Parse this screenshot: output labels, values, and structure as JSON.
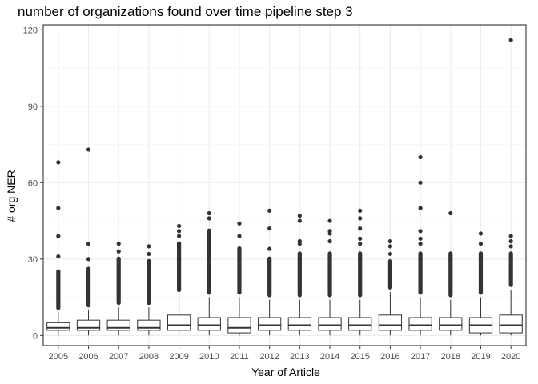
{
  "chart_data": {
    "type": "boxplot",
    "title": "number of organizations found over time pipeline step 3",
    "xlabel": "Year of Article",
    "ylabel": "# org NER",
    "ylim": [
      -4,
      122
    ],
    "yticks": [
      0,
      30,
      60,
      90,
      120
    ],
    "grid": true,
    "categories": [
      "2005",
      "2006",
      "2007",
      "2008",
      "2009",
      "2010",
      "2011",
      "2012",
      "2013",
      "2014",
      "2015",
      "2016",
      "2017",
      "2018",
      "2019",
      "2020"
    ],
    "boxes": [
      {
        "year": "2005",
        "min": 0,
        "q1": 2,
        "median": 3,
        "q3": 5,
        "upper_whisker": 9,
        "outliers_dense": [
          10,
          26
        ],
        "outliers": [
          31,
          39,
          50,
          68
        ]
      },
      {
        "year": "2006",
        "min": 0,
        "q1": 2,
        "median": 3,
        "q3": 6,
        "upper_whisker": 10,
        "outliers_dense": [
          11,
          27
        ],
        "outliers": [
          30,
          36,
          73
        ]
      },
      {
        "year": "2007",
        "min": 0,
        "q1": 2,
        "median": 3,
        "q3": 6,
        "upper_whisker": 11,
        "outliers_dense": [
          12,
          31
        ],
        "outliers": [
          33,
          36
        ]
      },
      {
        "year": "2008",
        "min": 0,
        "q1": 2,
        "median": 3,
        "q3": 6,
        "upper_whisker": 11,
        "outliers_dense": [
          12,
          30
        ],
        "outliers": [
          32,
          35
        ]
      },
      {
        "year": "2009",
        "min": 0,
        "q1": 2,
        "median": 4,
        "q3": 8,
        "upper_whisker": 16,
        "outliers_dense": [
          17,
          37
        ],
        "outliers": [
          39,
          41,
          43
        ]
      },
      {
        "year": "2010",
        "min": 0,
        "q1": 2,
        "median": 4,
        "q3": 7,
        "upper_whisker": 15,
        "outliers_dense": [
          16,
          42
        ],
        "outliers": [
          46,
          48
        ]
      },
      {
        "year": "2011",
        "min": 0,
        "q1": 1,
        "median": 3,
        "q3": 7,
        "upper_whisker": 15,
        "outliers_dense": [
          16,
          35
        ],
        "outliers": [
          39,
          44
        ]
      },
      {
        "year": "2012",
        "min": 0,
        "q1": 2,
        "median": 4,
        "q3": 7,
        "upper_whisker": 14,
        "outliers_dense": [
          15,
          31
        ],
        "outliers": [
          34,
          42,
          49
        ]
      },
      {
        "year": "2013",
        "min": 0,
        "q1": 2,
        "median": 4,
        "q3": 7,
        "upper_whisker": 14,
        "outliers_dense": [
          15,
          33
        ],
        "outliers": [
          36,
          37,
          45,
          47
        ]
      },
      {
        "year": "2014",
        "min": 0,
        "q1": 2,
        "median": 4,
        "q3": 7,
        "upper_whisker": 14,
        "outliers_dense": [
          15,
          33
        ],
        "outliers": [
          37,
          40,
          41,
          45
        ]
      },
      {
        "year": "2015",
        "min": 0,
        "q1": 2,
        "median": 4,
        "q3": 7,
        "upper_whisker": 14,
        "outliers_dense": [
          15,
          33
        ],
        "outliers": [
          36,
          38,
          42,
          46,
          49
        ]
      },
      {
        "year": "2016",
        "min": 0,
        "q1": 2,
        "median": 4,
        "q3": 8,
        "upper_whisker": 17,
        "outliers_dense": [
          18,
          30
        ],
        "outliers": [
          32,
          35,
          37
        ]
      },
      {
        "year": "2017",
        "min": 0,
        "q1": 2,
        "median": 4,
        "q3": 7,
        "upper_whisker": 15,
        "outliers_dense": [
          16,
          33
        ],
        "outliers": [
          36,
          38,
          41,
          50,
          60,
          70
        ]
      },
      {
        "year": "2018",
        "min": 0,
        "q1": 2,
        "median": 4,
        "q3": 7,
        "upper_whisker": 14,
        "outliers_dense": [
          15,
          33
        ],
        "outliers": [
          48
        ]
      },
      {
        "year": "2019",
        "min": 0,
        "q1": 1,
        "median": 4,
        "q3": 7,
        "upper_whisker": 15,
        "outliers_dense": [
          16,
          33
        ],
        "outliers": [
          36,
          40
        ]
      },
      {
        "year": "2020",
        "min": 0,
        "q1": 1,
        "median": 4,
        "q3": 8,
        "upper_whisker": 18,
        "outliers_dense": [
          19,
          33
        ],
        "outliers": [
          35,
          37,
          39,
          116
        ]
      }
    ],
    "colors": {
      "panel_border": "#333333",
      "grid_major": "#ebebeb",
      "grid_minor": "#f5f5f5",
      "box_line": "#333333",
      "box_fill": "#ffffff",
      "point": "#333333",
      "tick_label": "#4d4d4d",
      "text": "#000000"
    }
  }
}
